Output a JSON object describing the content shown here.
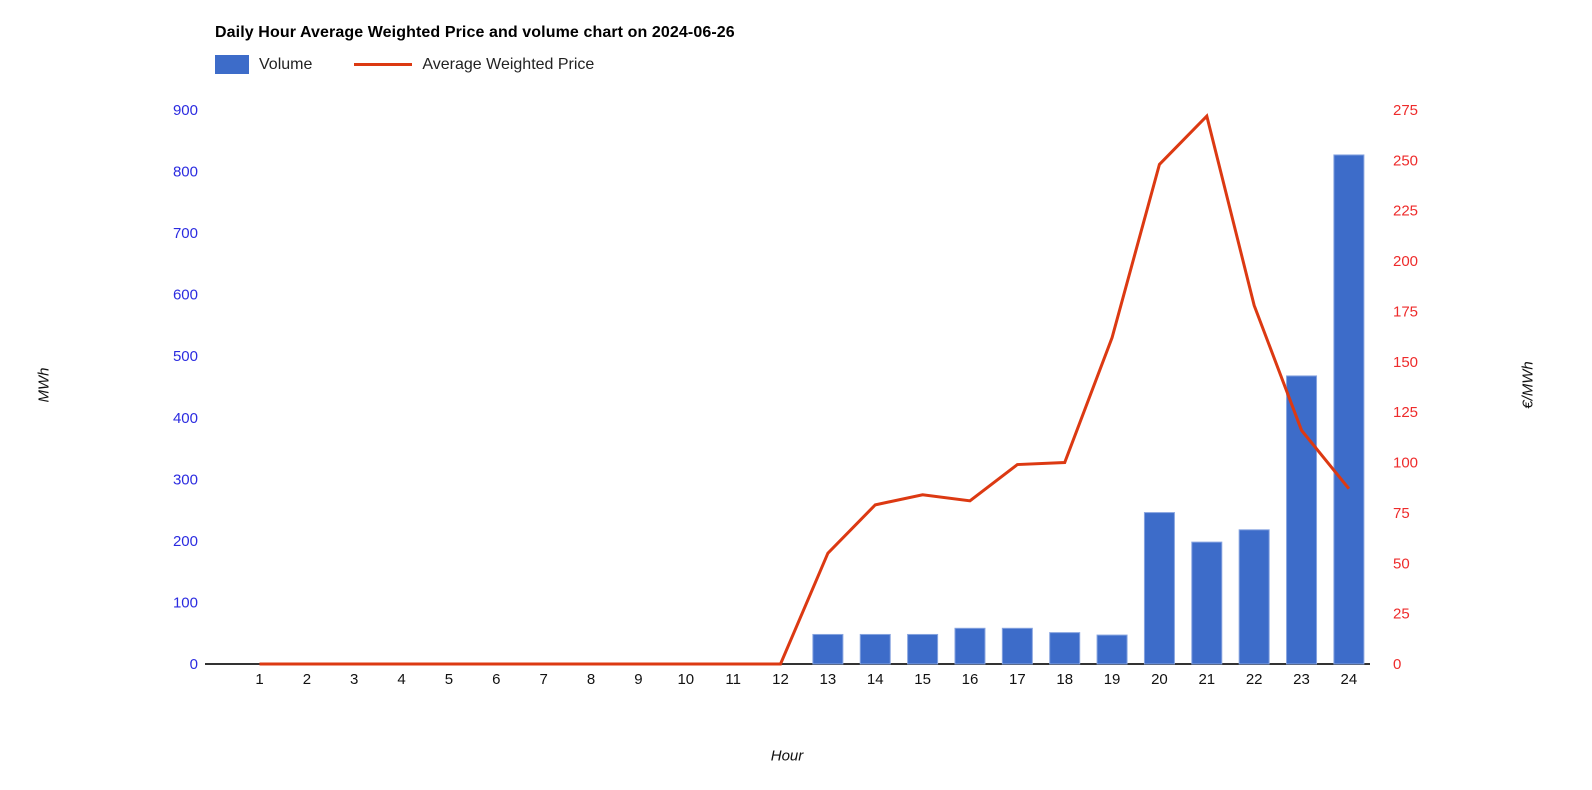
{
  "chart_data": {
    "type": "bar",
    "title": "Daily Hour Average Weighted Price and volume chart on 2024-06-26",
    "xlabel": "Hour",
    "ylabel_left": "MWh",
    "ylabel_right": "€/MWh",
    "categories": [
      1,
      2,
      3,
      4,
      5,
      6,
      7,
      8,
      9,
      10,
      11,
      12,
      13,
      14,
      15,
      16,
      17,
      18,
      19,
      20,
      21,
      22,
      23,
      24
    ],
    "series": [
      {
        "name": "Volume",
        "type": "bar",
        "axis": "left",
        "color": "#3d6cc9",
        "edge_color": "#87a4e0",
        "values": [
          0,
          0,
          0,
          0,
          0,
          0,
          0,
          0,
          0,
          0,
          0,
          0,
          48,
          48,
          48,
          58,
          58,
          51,
          47,
          246,
          198,
          218,
          468,
          827
        ]
      },
      {
        "name": "Average Weighted Price",
        "type": "line",
        "axis": "right",
        "color": "#dc3912",
        "values": [
          0,
          0,
          0,
          0,
          0,
          0,
          0,
          0,
          0,
          0,
          0,
          0,
          55,
          79,
          84,
          81,
          99,
          100,
          162,
          248,
          272,
          178,
          116,
          87
        ]
      }
    ],
    "ylim_left": [
      0,
      900
    ],
    "yticks_left": [
      0,
      100,
      200,
      300,
      400,
      500,
      600,
      700,
      800,
      900
    ],
    "ylim_right": [
      0,
      275
    ],
    "yticks_right": [
      0,
      25,
      50,
      75,
      100,
      125,
      150,
      175,
      200,
      225,
      250,
      275
    ],
    "axis_colors": {
      "left_ticks": "#2b2be0",
      "right_ticks": "#ee2b2b",
      "axis_line": "#333333"
    },
    "grid": false,
    "legend_position": "top-left"
  }
}
